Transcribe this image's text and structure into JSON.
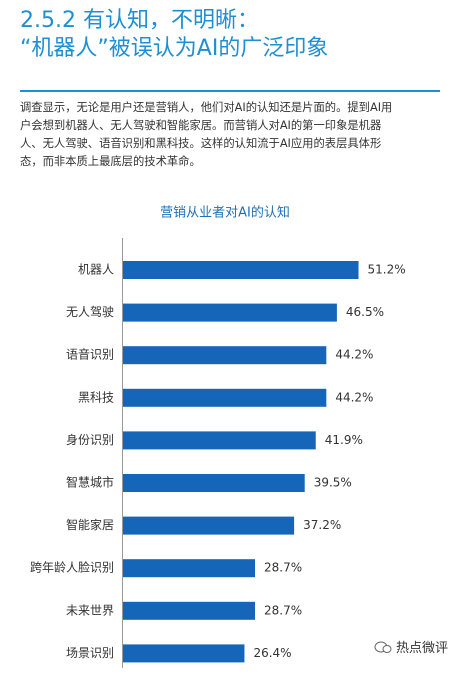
{
  "header": {
    "title_lines": [
      "2.5.2 有认知，不明晰：",
      "“机器人”被误认为AI的广泛印象"
    ]
  },
  "paragraph": {
    "lines": [
      "调查显示，无论是用户还是营销人，他们对AI的认知还是片面的。提到AI用",
      "户会想到机器人、无人驾驶和智能家居。而营销人对AI的第一印象是机器",
      "人、无人驾驶、语音识别和黑科技。这样的认知流于AI应用的表层具体形",
      "态，而非本质上最底层的技术革命。"
    ]
  },
  "chart_data": {
    "type": "hbar",
    "title": "营销从业者对AI的认知",
    "categories": [
      "机器人",
      "无人驾驶",
      "语音识别",
      "黑科技",
      "身份识别",
      "智慧城市",
      "智能家居",
      "跨年龄人脸识别",
      "未来世界",
      "场景识别"
    ],
    "values": [
      51.2,
      46.5,
      44.2,
      44.2,
      41.9,
      39.5,
      37.2,
      28.7,
      28.7,
      26.4
    ],
    "value_labels": [
      "51.2%",
      "46.5%",
      "44.2%",
      "44.2%",
      "41.9%",
      "39.5%",
      "37.2%",
      "28.7%",
      "28.7%",
      "26.4%"
    ],
    "color": "#1565b8"
  },
  "watermark": {
    "text": "热点微评"
  }
}
